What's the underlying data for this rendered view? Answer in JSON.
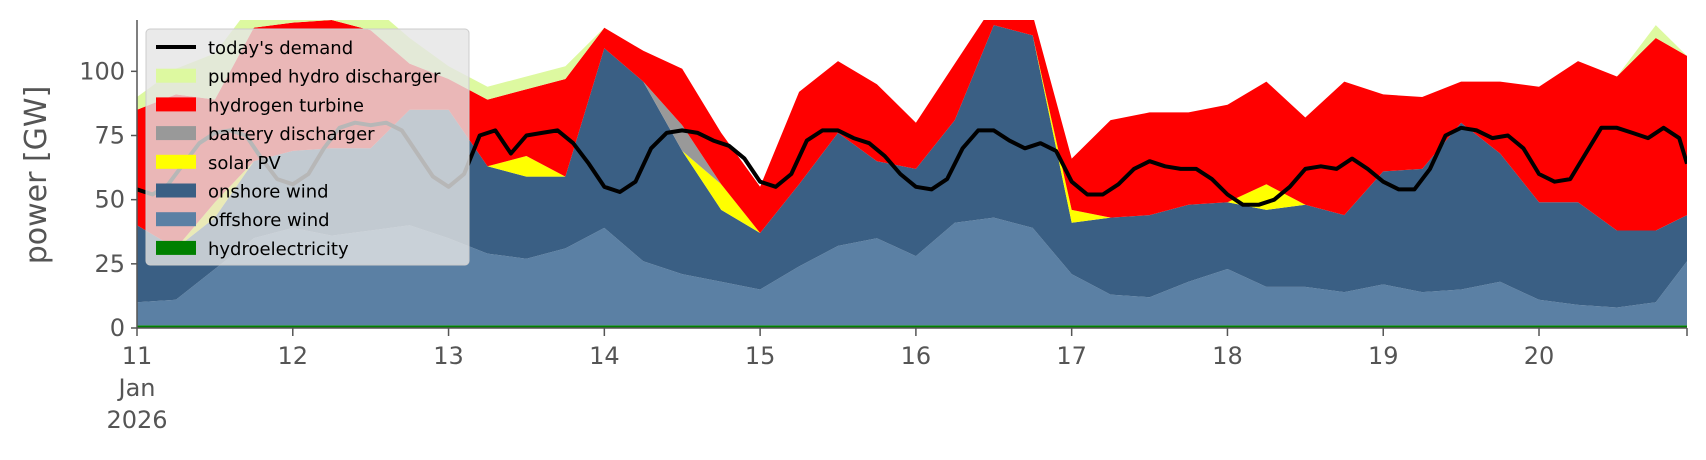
{
  "chart_data": {
    "type": "area",
    "xlabel": "",
    "ylabel": "power [GW]",
    "xlim": [
      0,
      9.95
    ],
    "ylim": [
      0,
      120
    ],
    "yticks": [
      0,
      25,
      50,
      75,
      100
    ],
    "xticks": [
      {
        "pos": 0,
        "lines": [
          "11",
          "Jan",
          "2026"
        ]
      },
      {
        "pos": 1,
        "lines": [
          "12"
        ]
      },
      {
        "pos": 2,
        "lines": [
          "13"
        ]
      },
      {
        "pos": 3,
        "lines": [
          "14"
        ]
      },
      {
        "pos": 4,
        "lines": [
          "15"
        ]
      },
      {
        "pos": 5,
        "lines": [
          "16"
        ]
      },
      {
        "pos": 6,
        "lines": [
          "17"
        ]
      },
      {
        "pos": 7,
        "lines": [
          "18"
        ]
      },
      {
        "pos": 8,
        "lines": [
          "19"
        ]
      },
      {
        "pos": 9,
        "lines": [
          "20"
        ]
      }
    ],
    "legend_position": "upper-left",
    "x": [
      0,
      0.25,
      0.5,
      0.75,
      1,
      1.25,
      1.5,
      1.75,
      2,
      2.25,
      2.5,
      2.75,
      3,
      3.25,
      3.5,
      3.75,
      4,
      4.25,
      4.5,
      4.75,
      5,
      5.25,
      5.5,
      5.75,
      6,
      6.25,
      6.5,
      6.75,
      7,
      7.25,
      7.5,
      7.75,
      8,
      8.25,
      8.5,
      8.75,
      9,
      9.25,
      9.5,
      9.75,
      9.95
    ],
    "series": [
      {
        "name": "hydroelectricity",
        "color": "#008000",
        "values": [
          1,
          1,
          1,
          1,
          1,
          1,
          1,
          1,
          1,
          1,
          1,
          1,
          1,
          1,
          1,
          1,
          1,
          1,
          1,
          1,
          1,
          1,
          1,
          1,
          1,
          1,
          1,
          1,
          1,
          1,
          1,
          1,
          1,
          1,
          1,
          1,
          1,
          1,
          1,
          1,
          1
        ]
      },
      {
        "name": "offshore wind",
        "color": "#5b80a4",
        "values": [
          9,
          10,
          22,
          34,
          38,
          35,
          37,
          39,
          34,
          28,
          26,
          30,
          38,
          25,
          20,
          17,
          14,
          23,
          31,
          34,
          27,
          40,
          42,
          38,
          20,
          12,
          11,
          17,
          22,
          15,
          15,
          13,
          16,
          13,
          14,
          17,
          10,
          8,
          7,
          9,
          25
        ]
      },
      {
        "name": "onshore wind",
        "color": "#3a5f84",
        "values": [
          30,
          20,
          20,
          30,
          30,
          34,
          32,
          45,
          50,
          34,
          32,
          28,
          70,
          70,
          48,
          28,
          22,
          32,
          44,
          30,
          34,
          40,
          75,
          75,
          20,
          30,
          32,
          30,
          26,
          30,
          32,
          30,
          44,
          48,
          65,
          50,
          38,
          40,
          30,
          28,
          18
        ]
      },
      {
        "name": "solar PV",
        "color": "#ffff00",
        "values": [
          0,
          0,
          6,
          0,
          0,
          0,
          0,
          0,
          0,
          0,
          8,
          0,
          0,
          0,
          0,
          10,
          0,
          0,
          0,
          0,
          0,
          0,
          0,
          0,
          5,
          0,
          0,
          0,
          0,
          10,
          0,
          0,
          0,
          0,
          0,
          0,
          0,
          0,
          0,
          0,
          0
        ]
      },
      {
        "name": "battery discharger",
        "color": "#999999",
        "values": [
          0,
          0,
          0,
          0,
          0,
          0,
          0,
          0,
          0,
          0,
          0,
          0,
          0,
          0,
          10,
          0,
          0,
          0,
          0,
          0,
          0,
          0,
          0,
          0,
          0,
          0,
          0,
          0,
          0,
          0,
          0,
          0,
          0,
          0,
          0,
          0,
          0,
          0,
          0,
          0,
          0
        ]
      },
      {
        "name": "hydrogen turbine",
        "color": "#ff0000",
        "values": [
          45,
          60,
          40,
          52,
          50,
          50,
          46,
          18,
          12,
          26,
          26,
          38,
          8,
          12,
          22,
          20,
          18,
          36,
          28,
          30,
          18,
          22,
          8,
          8,
          20,
          38,
          40,
          36,
          38,
          40,
          34,
          52,
          30,
          28,
          16,
          28,
          45,
          55,
          60,
          75,
          62
        ]
      },
      {
        "name": "pumped hydro discharger",
        "color": "#ddf9a0",
        "values": [
          5,
          10,
          18,
          10,
          10,
          10,
          10,
          10,
          5,
          5,
          5,
          5,
          0,
          0,
          0,
          0,
          0,
          0,
          0,
          0,
          0,
          0,
          0,
          0,
          0,
          0,
          0,
          0,
          0,
          0,
          0,
          0,
          0,
          0,
          0,
          0,
          0,
          0,
          0,
          5,
          0
        ]
      }
    ],
    "legend": [
      {
        "label": "today's demand",
        "color": "#000000",
        "kind": "line"
      },
      {
        "label": "pumped hydro discharger",
        "color": "#ddf9a0",
        "kind": "patch"
      },
      {
        "label": "hydrogen turbine",
        "color": "#ff0000",
        "kind": "patch"
      },
      {
        "label": "battery discharger",
        "color": "#999999",
        "kind": "patch"
      },
      {
        "label": "solar PV",
        "color": "#ffff00",
        "kind": "patch"
      },
      {
        "label": "onshore wind",
        "color": "#3a5f84",
        "kind": "patch"
      },
      {
        "label": "offshore wind",
        "color": "#5b80a4",
        "kind": "patch"
      },
      {
        "label": "hydroelectricity",
        "color": "#008000",
        "kind": "patch"
      }
    ],
    "demand": {
      "name": "today's demand",
      "color": "#000000",
      "x": [
        0,
        0.1,
        0.2,
        0.3,
        0.4,
        0.5,
        0.6,
        0.7,
        0.8,
        0.9,
        1,
        1.1,
        1.2,
        1.3,
        1.4,
        1.5,
        1.6,
        1.7,
        1.8,
        1.9,
        2,
        2.1,
        2.2,
        2.3,
        2.4,
        2.5,
        2.6,
        2.7,
        2.8,
        2.9,
        3,
        3.1,
        3.2,
        3.3,
        3.4,
        3.5,
        3.6,
        3.7,
        3.8,
        3.9,
        4,
        4.1,
        4.2,
        4.3,
        4.4,
        4.5,
        4.6,
        4.7,
        4.8,
        4.9,
        5,
        5.1,
        5.2,
        5.3,
        5.4,
        5.5,
        5.6,
        5.7,
        5.8,
        5.9,
        6,
        6.1,
        6.2,
        6.3,
        6.4,
        6.5,
        6.6,
        6.7,
        6.8,
        6.9,
        7,
        7.1,
        7.2,
        7.3,
        7.4,
        7.5,
        7.6,
        7.7,
        7.8,
        7.9,
        8,
        8.1,
        8.2,
        8.3,
        8.4,
        8.5,
        8.6,
        8.7,
        8.8,
        8.9,
        9,
        9.1,
        9.2,
        9.3,
        9.4,
        9.5,
        9.6,
        9.7,
        9.8,
        9.9,
        9.95
      ],
      "values": [
        54,
        52,
        56,
        64,
        72,
        76,
        77,
        75,
        66,
        58,
        56,
        60,
        70,
        78,
        80,
        79,
        80,
        77,
        68,
        59,
        55,
        60,
        75,
        77,
        68,
        75,
        76,
        77,
        72,
        64,
        55,
        53,
        57,
        70,
        76,
        77,
        76,
        73,
        71,
        66,
        57,
        55,
        60,
        73,
        77,
        77,
        74,
        72,
        67,
        60,
        55,
        54,
        58,
        70,
        77,
        77,
        73,
        70,
        72,
        69,
        57,
        52,
        52,
        56,
        62,
        65,
        63,
        62,
        62,
        58,
        52,
        48,
        48,
        50,
        55,
        62,
        63,
        62,
        66,
        62,
        57,
        54,
        54,
        62,
        75,
        78,
        77,
        74,
        75,
        70,
        60,
        57,
        58,
        68,
        78,
        78,
        76,
        74,
        78,
        74,
        64
      ]
    }
  }
}
